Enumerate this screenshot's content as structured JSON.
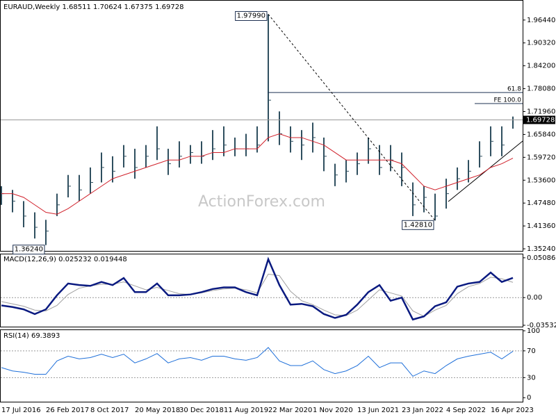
{
  "chart_data": {
    "type": "ohlc",
    "title": "EURAUD,Weekly  1.68511 1.70624 1.67375 1.69728",
    "watermark": "ActionForex.com",
    "categories": [
      "17 Jul 2016",
      null,
      null,
      null,
      "26 Feb 2017",
      null,
      null,
      null,
      "8 Oct 2017",
      null,
      null,
      null,
      "20 May 2018",
      null,
      null,
      null,
      "30 Dec 2018",
      null,
      null,
      null,
      "11 Aug 2019",
      null,
      null,
      null,
      "22 Mar 2020",
      null,
      null,
      null,
      "1 Nov 2020",
      null,
      null,
      null,
      "13 Jun 2021",
      null,
      null,
      null,
      "23 Jan 2022",
      null,
      null,
      null,
      "4 Sep 2022",
      null,
      null,
      null,
      "16 Apr 2023",
      null,
      null
    ],
    "price": {
      "color": "#2f4f5f",
      "high": [
        1.52,
        1.51,
        1.48,
        1.45,
        1.43,
        1.5,
        1.55,
        1.55,
        1.57,
        1.61,
        1.6,
        1.63,
        1.62,
        1.63,
        1.68,
        1.62,
        1.64,
        1.63,
        1.64,
        1.67,
        1.68,
        1.65,
        1.66,
        1.68,
        1.9799,
        1.72,
        1.68,
        1.67,
        1.69,
        1.65,
        1.58,
        1.59,
        1.61,
        1.65,
        1.63,
        1.63,
        1.61,
        1.53,
        1.52,
        1.5,
        1.54,
        1.57,
        1.59,
        1.64,
        1.68,
        1.68,
        1.70624
      ],
      "low": [
        1.47,
        1.45,
        1.41,
        1.38,
        1.3624,
        1.44,
        1.49,
        1.48,
        1.5,
        1.53,
        1.53,
        1.57,
        1.54,
        1.57,
        1.59,
        1.55,
        1.57,
        1.58,
        1.58,
        1.59,
        1.6,
        1.6,
        1.6,
        1.61,
        1.64,
        1.63,
        1.61,
        1.59,
        1.61,
        1.56,
        1.52,
        1.53,
        1.55,
        1.58,
        1.55,
        1.56,
        1.52,
        1.44,
        1.45,
        1.4281,
        1.46,
        1.51,
        1.53,
        1.57,
        1.6,
        1.6,
        1.67375
      ],
      "close": [
        1.5,
        1.48,
        1.44,
        1.41,
        1.4,
        1.47,
        1.52,
        1.51,
        1.53,
        1.57,
        1.56,
        1.6,
        1.57,
        1.6,
        1.62,
        1.58,
        1.6,
        1.61,
        1.6,
        1.62,
        1.63,
        1.62,
        1.62,
        1.63,
        1.75,
        1.66,
        1.64,
        1.63,
        1.65,
        1.6,
        1.55,
        1.56,
        1.58,
        1.62,
        1.57,
        1.59,
        1.57,
        1.47,
        1.49,
        1.44,
        1.5,
        1.54,
        1.56,
        1.6,
        1.64,
        1.63,
        1.69728
      ]
    },
    "moving_average": {
      "color": "#d0202a",
      "values": [
        1.5,
        1.5,
        1.49,
        1.47,
        1.45,
        1.445,
        1.46,
        1.48,
        1.5,
        1.52,
        1.54,
        1.55,
        1.56,
        1.57,
        1.58,
        1.59,
        1.59,
        1.6,
        1.6,
        1.61,
        1.61,
        1.62,
        1.62,
        1.62,
        1.65,
        1.66,
        1.65,
        1.65,
        1.64,
        1.63,
        1.61,
        1.59,
        1.59,
        1.59,
        1.59,
        1.59,
        1.58,
        1.55,
        1.52,
        1.51,
        1.52,
        1.53,
        1.54,
        1.55,
        1.57,
        1.58,
        1.595
      ]
    },
    "ylim": [
      1.345,
      2.018
    ],
    "yticks": [
      {
        "value": 1.3524,
        "label": "1.35240"
      },
      {
        "value": 1.4136,
        "label": "1.41360"
      },
      {
        "value": 1.4748,
        "label": "1.47480"
      },
      {
        "value": 1.536,
        "label": "1.53600"
      },
      {
        "value": 1.5972,
        "label": "1.59720"
      },
      {
        "value": 1.6584,
        "label": "1.65840"
      },
      {
        "value": 1.7196,
        "label": "1.71960"
      },
      {
        "value": 1.7808,
        "label": "1.78080"
      },
      {
        "value": 1.842,
        "label": "1.84200"
      },
      {
        "value": 1.9032,
        "label": "1.90320"
      },
      {
        "value": 1.9644,
        "label": "1.96440"
      }
    ],
    "high_label": "1.97990",
    "low_labels": [
      "1.36240",
      "1.42810"
    ],
    "levels": [
      {
        "label": "61.8",
        "value": 1.7706
      },
      {
        "label": "FE 100.0",
        "value": 1.741
      }
    ],
    "macd": {
      "title": "MACD(12,26,9) 0.025232 0.019448",
      "main": {
        "color": "#0a1a80",
        "values": [
          -0.01,
          -0.012,
          -0.015,
          -0.021,
          -0.015,
          0.003,
          0.018,
          0.016,
          0.015,
          0.02,
          0.016,
          0.025,
          0.007,
          0.007,
          0.018,
          0.003,
          0.003,
          0.004,
          0.007,
          0.011,
          0.013,
          0.013,
          0.007,
          0.003,
          0.049,
          0.016,
          -0.009,
          -0.008,
          -0.011,
          -0.021,
          -0.026,
          -0.022,
          -0.009,
          0.007,
          0.016,
          -0.004,
          0.0,
          -0.028,
          -0.024,
          -0.011,
          -0.006,
          0.014,
          0.018,
          0.02,
          0.032,
          0.02,
          0.025232
        ]
      },
      "signal": {
        "color": "#a0a0a0",
        "values": [
          -0.005,
          -0.008,
          -0.011,
          -0.016,
          -0.017,
          -0.01,
          0.004,
          0.012,
          0.015,
          0.017,
          0.017,
          0.02,
          0.015,
          0.01,
          0.013,
          0.009,
          0.005,
          0.004,
          0.006,
          0.009,
          0.011,
          0.012,
          0.01,
          0.006,
          0.03,
          0.028,
          0.008,
          -0.004,
          -0.009,
          -0.016,
          -0.022,
          -0.023,
          -0.016,
          -0.003,
          0.01,
          0.006,
          0.002,
          -0.017,
          -0.024,
          -0.016,
          -0.01,
          0.005,
          0.014,
          0.018,
          0.026,
          0.024,
          0.019448
        ]
      },
      "ylim": [
        -0.0371,
        0.0552
      ],
      "yticks": [
        0.050863,
        {
          "value": 0,
          "label": "0.00"
        },
        -0.035322
      ]
    },
    "rsi": {
      "title": "RSI(14) 69.3893",
      "color": "#1e6fd9",
      "values": [
        45,
        40,
        38,
        35,
        35,
        55,
        62,
        58,
        60,
        65,
        60,
        65,
        52,
        58,
        66,
        52,
        58,
        60,
        56,
        62,
        62,
        58,
        56,
        60,
        75,
        55,
        48,
        48,
        55,
        42,
        36,
        40,
        48,
        62,
        45,
        52,
        52,
        32,
        40,
        36,
        48,
        58,
        62,
        65,
        68,
        58,
        69.3893
      ],
      "ylim": [
        -6,
        101
      ],
      "yticks": [
        100,
        70,
        30,
        0
      ]
    }
  }
}
